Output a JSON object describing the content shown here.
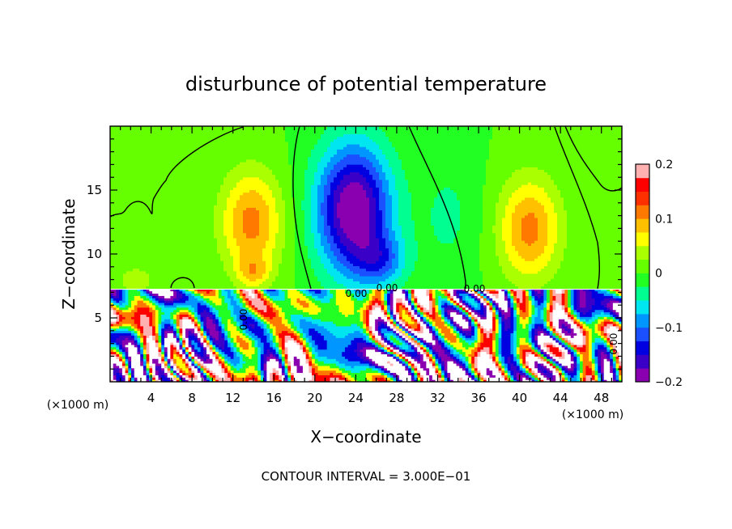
{
  "chart_data": {
    "type": "heatmap",
    "title": "disturbunce of potential temperature",
    "xlabel": "X−coordinate",
    "ylabel": "Z−coordinate",
    "x_unit": "(×1000 m)",
    "z_unit": "(×1000 m)",
    "xlim": [
      0,
      50
    ],
    "ylim": [
      0,
      20
    ],
    "x_ticks": [
      4,
      8,
      12,
      16,
      20,
      24,
      28,
      32,
      36,
      40,
      44,
      48
    ],
    "y_ticks": [
      5,
      10,
      15
    ],
    "colorbar": {
      "range": [
        -0.2,
        0.2
      ],
      "tick_values": [
        0.2,
        0.1,
        0,
        -0.1,
        -0.2
      ],
      "tick_labels": [
        "0.2",
        "0.1",
        "0",
        "−0.1",
        "−0.2"
      ],
      "colors": [
        "#8a00b0",
        "#3b00c8",
        "#0000e0",
        "#1a50ff",
        "#0096ff",
        "#00e6f0",
        "#00ff90",
        "#22ff22",
        "#66ff00",
        "#aaff00",
        "#ffff00",
        "#ffc000",
        "#ff7800",
        "#ff3000",
        "#ff0000",
        "#ffb0b0"
      ]
    },
    "field": {
      "background": 0.0,
      "upper_layer_top": 20,
      "interface_z": 7.3,
      "features": [
        {
          "x": 23.8,
          "z": 13.5,
          "amp": -0.21,
          "sx": 3.6,
          "sz": 5.0
        },
        {
          "x": 26.5,
          "z": 9.5,
          "amp": -0.08,
          "sx": 2.5,
          "sz": 2.0
        },
        {
          "x": 13.8,
          "z": 12.5,
          "amp": 0.11,
          "sx": 3.0,
          "sz": 4.0
        },
        {
          "x": 14.0,
          "z": 8.6,
          "amp": 0.06,
          "sx": 1.6,
          "sz": 1.2
        },
        {
          "x": 41.0,
          "z": 12.0,
          "amp": 0.11,
          "sx": 3.0,
          "sz": 4.0
        },
        {
          "x": 2.5,
          "z": 8.0,
          "amp": 0.04,
          "sx": 2.0,
          "sz": 1.2
        },
        {
          "x": 33.0,
          "z": 13.0,
          "amp": -0.03,
          "sx": 3.0,
          "sz": 5.0
        }
      ]
    },
    "contour_interval_label": "CONTOUR INTERVAL = 3.000E−01",
    "contour_labels": [
      "0.00",
      "0.00",
      "0.00",
      "0.00",
      "0.00"
    ]
  }
}
